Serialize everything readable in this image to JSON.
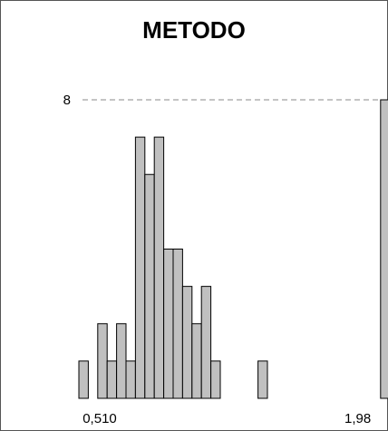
{
  "chart_data": {
    "type": "bar",
    "title": "METODO",
    "xlabel": "",
    "ylabel": "",
    "x_tick_labels": [
      "0,510",
      "1,98"
    ],
    "y_reference": {
      "value": 8,
      "label": "8"
    },
    "ylim": [
      0,
      8
    ],
    "values": [
      1,
      0,
      2,
      1,
      2,
      1,
      7,
      6,
      7,
      4,
      4,
      3,
      2,
      3,
      1,
      0,
      0,
      0,
      0,
      1,
      0,
      0,
      0,
      0,
      0,
      0,
      0,
      0,
      0,
      0,
      0,
      0,
      8
    ],
    "grid": false,
    "bar_color": "#c0c0c0",
    "bar_edge_color": "#000000",
    "reference_line_color": "#888888"
  }
}
